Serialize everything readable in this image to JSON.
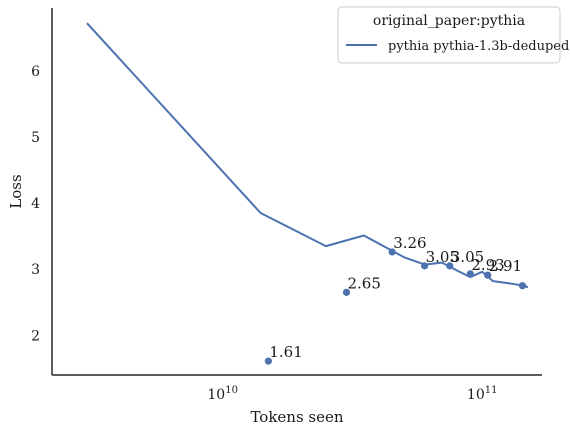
{
  "chart_data": {
    "type": "line",
    "title": "",
    "xlabel": "Tokens seen",
    "ylabel": "Loss",
    "xscale": "log",
    "xlim": [
      2200000000,
      170000000000
    ],
    "ylim": [
      1.4,
      6.95
    ],
    "grid": false,
    "legend": {
      "title": "original_paper:pythia",
      "placement": "top-right",
      "entries": [
        "pythia pythia-1.3b-deduped"
      ]
    },
    "colors": {
      "series": "#4c72b0",
      "axis": "#262626"
    },
    "xticks": [
      {
        "value": 10000000000,
        "base": "10",
        "exp": "10"
      },
      {
        "value": 100000000000,
        "base": "10",
        "exp": "11"
      }
    ],
    "yticks": [
      {
        "value": 2,
        "label": "2"
      },
      {
        "value": 3,
        "label": "3"
      },
      {
        "value": 4,
        "label": "4"
      },
      {
        "value": 5,
        "label": "5"
      },
      {
        "value": 6,
        "label": "6"
      }
    ],
    "series": [
      {
        "name": "pythia pythia-1.3b-deduped",
        "x": [
          3000000000,
          14000000000,
          25000000000,
          35000000000,
          50000000000,
          60000000000,
          70000000000,
          80000000000,
          90000000000,
          100000000000,
          110000000000,
          130000000000,
          140000000000,
          150000000000
        ],
        "y": [
          6.72,
          3.85,
          3.35,
          3.51,
          3.18,
          3.07,
          3.1,
          2.98,
          2.88,
          2.96,
          2.82,
          2.78,
          2.76,
          2.73
        ]
      }
    ],
    "points": [
      {
        "x": 15000000000,
        "y": 1.61,
        "label": "1.61"
      },
      {
        "x": 30000000000,
        "y": 2.65,
        "label": "2.65"
      },
      {
        "x": 45000000000,
        "y": 3.26,
        "label": "3.26"
      },
      {
        "x": 60000000000,
        "y": 3.05,
        "label": "3.05"
      },
      {
        "x": 75000000000,
        "y": 3.05,
        "label": "3.05"
      },
      {
        "x": 90000000000,
        "y": 2.93,
        "label": "2.93"
      },
      {
        "x": 105000000000,
        "y": 2.91,
        "label": "2.91"
      },
      {
        "x": 143000000000,
        "y": 2.75,
        "label": ""
      }
    ]
  }
}
